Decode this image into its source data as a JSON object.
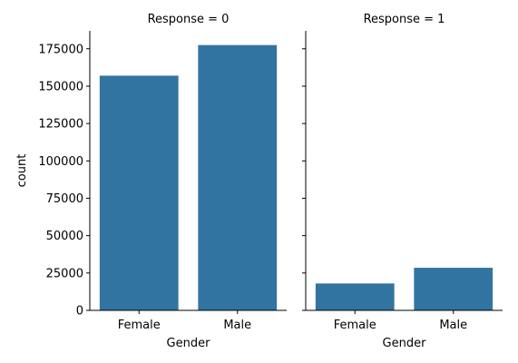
{
  "chart_data": [
    {
      "type": "bar",
      "title": "Response = 0",
      "xlabel": "Gender",
      "ylabel": "count",
      "categories": [
        "Female",
        "Male"
      ],
      "values": [
        157000,
        177500
      ],
      "ylim": [
        0,
        187000
      ],
      "yticks": [
        0,
        25000,
        50000,
        75000,
        100000,
        125000,
        150000,
        175000
      ],
      "grid": false,
      "color": "#3274a1"
    },
    {
      "type": "bar",
      "title": "Response = 1",
      "xlabel": "Gender",
      "ylabel": "",
      "categories": [
        "Female",
        "Male"
      ],
      "values": [
        18000,
        28500
      ],
      "ylim": [
        0,
        187000
      ],
      "yticks": [
        0,
        25000,
        50000,
        75000,
        100000,
        125000,
        150000,
        175000
      ],
      "grid": false,
      "color": "#3274a1"
    }
  ]
}
